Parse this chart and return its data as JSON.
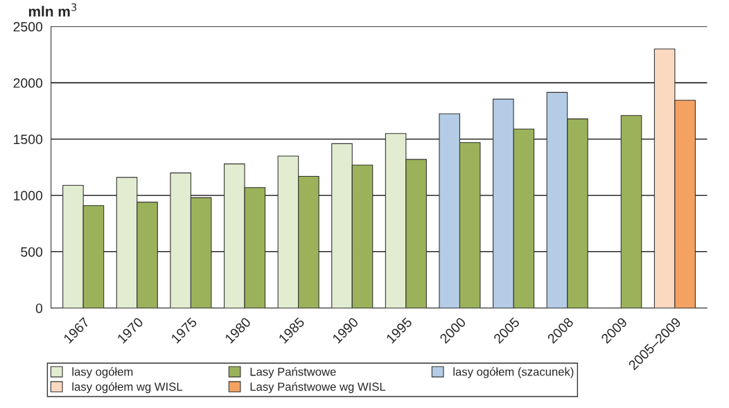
{
  "chart_data": {
    "type": "bar",
    "ylabel": "mln m$^{3}$",
    "categories": [
      "1967",
      "1970",
      "1975",
      "1980",
      "1985",
      "1990",
      "1995",
      "2000",
      "2005",
      "2008",
      "2009",
      "2005–2009"
    ],
    "series": [
      {
        "name": "lasy ogółem",
        "color": "#e2ecd0",
        "values": [
          1090,
          1160,
          1200,
          1280,
          1350,
          1460,
          1550,
          null,
          null,
          null,
          null,
          null
        ]
      },
      {
        "name": "Lasy Państwowe",
        "color": "#9bb25a",
        "values": [
          910,
          940,
          980,
          1070,
          1170,
          1270,
          1320,
          1470,
          1590,
          1680,
          1710,
          null
        ]
      },
      {
        "name": "lasy ogółem (szacunek)",
        "color": "#b4cce6",
        "values": [
          null,
          null,
          null,
          null,
          null,
          null,
          null,
          1725,
          1855,
          1915,
          null,
          null
        ]
      },
      {
        "name": "lasy ogółem wg WISL",
        "color": "#fbd8c0",
        "values": [
          null,
          null,
          null,
          null,
          null,
          null,
          null,
          null,
          null,
          null,
          null,
          2300
        ]
      },
      {
        "name": "Lasy Państwowe wg WISL",
        "color": "#f4a262",
        "values": [
          null,
          null,
          null,
          null,
          null,
          null,
          null,
          null,
          null,
          null,
          null,
          1845
        ]
      }
    ],
    "ylim": [
      0,
      2500
    ],
    "yticks": [
      0,
      500,
      1000,
      1500,
      2000,
      2500
    ],
    "grid": "y",
    "legend": "bottom"
  }
}
